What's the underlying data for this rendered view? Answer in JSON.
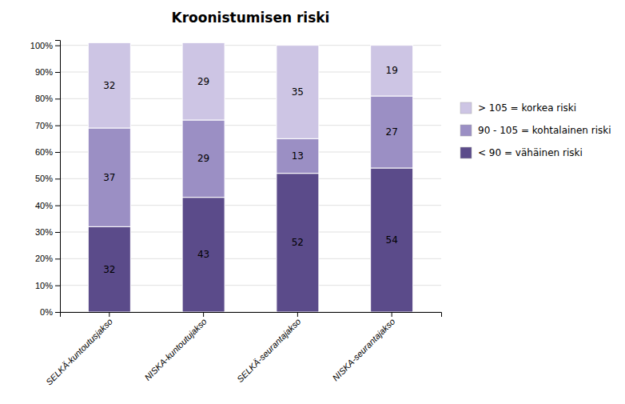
{
  "chart_data": {
    "type": "bar",
    "stacked": true,
    "title": "Kroonistumisen riski",
    "categories": [
      "SELKÄ-kuntoutusjakso",
      "NISKA-kuntoutujakso",
      "SELKÄ-seurantajakso",
      "NISKA-seurantajakso"
    ],
    "series": [
      {
        "name": "< 90 = vähäinen riski",
        "color": "#5b4b8a",
        "values": [
          32,
          43,
          52,
          54
        ]
      },
      {
        "name": "90 - 105 = kohtalainen riski",
        "color": "#9b8fc4",
        "values": [
          37,
          29,
          13,
          27
        ]
      },
      {
        "name": "> 105 = korkea riski",
        "color": "#cdc5e4",
        "values": [
          32,
          29,
          35,
          19
        ]
      }
    ],
    "ylim": [
      0,
      102
    ],
    "yticks": [
      {
        "value": 0,
        "label": "0%"
      },
      {
        "value": 10,
        "label": "10%"
      },
      {
        "value": 20,
        "label": "20%"
      },
      {
        "value": 30,
        "label": "30%"
      },
      {
        "value": 40,
        "label": "40%"
      },
      {
        "value": 50,
        "label": "50%"
      },
      {
        "value": 60,
        "label": "60%"
      },
      {
        "value": 70,
        "label": "70%"
      },
      {
        "value": 80,
        "label": "80%"
      },
      {
        "value": 90,
        "label": "90%"
      },
      {
        "value": 100,
        "label": "100%"
      }
    ],
    "grid": true,
    "data_labels": true,
    "legend": "right"
  }
}
